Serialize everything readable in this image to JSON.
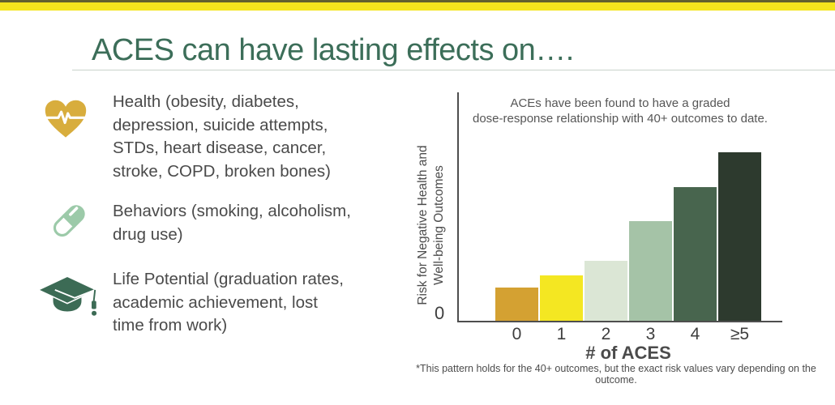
{
  "header": {
    "title": "ACES can have lasting effects on….",
    "accent_yellow": "#f4e51d",
    "accent_dark": "#62612e",
    "title_color": "#3c6e59"
  },
  "left_items": [
    {
      "icon": "heart-pulse-icon",
      "icon_color": "#d8ad3d",
      "lines": {
        "l0": "Health  (obesity, diabetes,",
        "l1": "depression, suicide attempts,",
        "l2": "STDs, heart disease, cancer,",
        "l3": "stroke, COPD, broken bones)"
      }
    },
    {
      "icon": "pill-icon",
      "icon_color": "#9ccaa9",
      "lines": {
        "l0": "Behaviors  (smoking, alcoholism,",
        "l1": "drug use)"
      }
    },
    {
      "icon": "graduation-cap-icon",
      "icon_color": "#3c6b55",
      "lines": {
        "l0": "Life Potential  (graduation rates,",
        "l1": "academic achievement, lost",
        "l2": "time from work)"
      }
    }
  ],
  "chart": {
    "annotation_line1": "ACEs have been found to have a graded",
    "annotation_line2": "dose-response relationship with 40+ outcomes to date.",
    "y_axis_label_line1": "Risk for Negative Health and",
    "y_axis_label_line2": "Well-being Outcomes",
    "origin_label": "0",
    "x_axis_label": "# of ACES",
    "footnote": "*This pattern holds for the 40+ outcomes, but the exact risk values vary depending on the outcome."
  },
  "chart_data": {
    "type": "bar",
    "title": "ACEs have been found to have a graded dose-response relationship with 40+ outcomes to date.",
    "xlabel": "# of ACES",
    "ylabel": "Risk for Negative Health and Well-being Outcomes",
    "categories": [
      "0",
      "1",
      "2",
      "3",
      "4",
      "≥5"
    ],
    "values": [
      41,
      56,
      74,
      123,
      165,
      208
    ],
    "ylim": [
      0,
      282
    ],
    "y_axis_numeric_labels_shown": [
      "0"
    ],
    "bar_colors": [
      "#d4a132",
      "#f4e722",
      "#dbe6d5",
      "#a5c3a7",
      "#48654e",
      "#2d3a2e"
    ],
    "grid": false,
    "legend": false,
    "note": "y-axis unlabeled except origin 0; values are relative bar heights"
  }
}
